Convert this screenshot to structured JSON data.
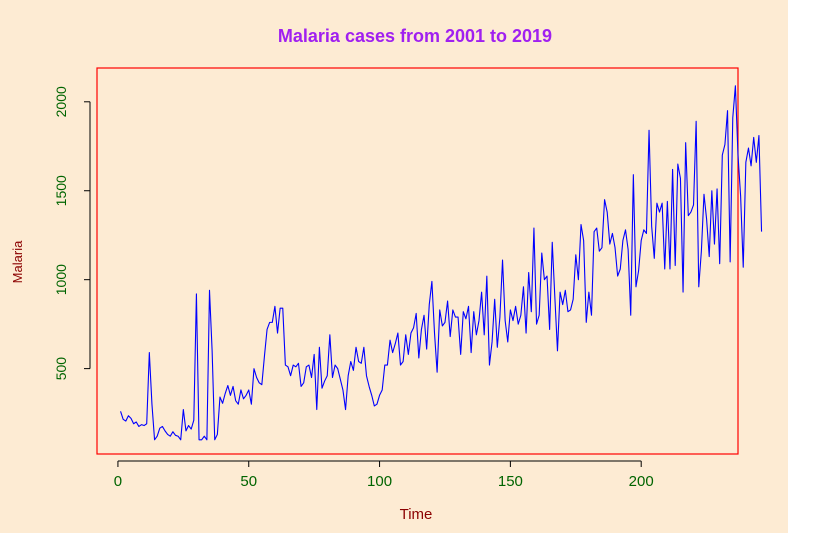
{
  "chart_data": {
    "type": "line",
    "title": "Malaria cases from 2001 to 2019",
    "xlabel": "Time",
    "ylabel": "Malaria",
    "xlim": [
      -8,
      237
    ],
    "ylim": [
      20,
      2190
    ],
    "x_ticks": [
      0,
      50,
      100,
      150,
      200
    ],
    "y_ticks": [
      500,
      1000,
      1500,
      2000
    ],
    "grid": false,
    "colors": {
      "title": "#a020f0",
      "axis_label": "#8b0000",
      "tick_label": "#006400",
      "frame": "#ff0000",
      "line": "#0000ff",
      "background": "#fdebd3"
    },
    "series": [
      {
        "x_start": 1,
        "x_step": 1,
        "values": [
          260,
          215,
          205,
          235,
          220,
          190,
          200,
          175,
          185,
          180,
          190,
          590,
          300,
          100,
          120,
          165,
          175,
          150,
          130,
          120,
          145,
          125,
          120,
          100,
          270,
          150,
          180,
          160,
          210,
          920,
          100,
          100,
          120,
          100,
          940,
          600,
          100,
          130,
          340,
          305,
          360,
          405,
          350,
          400,
          320,
          300,
          380,
          330,
          350,
          380,
          300,
          500,
          450,
          420,
          410,
          570,
          720,
          760,
          760,
          850,
          700,
          840,
          840,
          520,
          510,
          460,
          520,
          510,
          530,
          400,
          420,
          510,
          520,
          450,
          580,
          270,
          620,
          390,
          430,
          460,
          690,
          450,
          520,
          500,
          440,
          380,
          270,
          460,
          540,
          490,
          620,
          540,
          530,
          620,
          460,
          400,
          350,
          290,
          300,
          350,
          380,
          520,
          520,
          660,
          590,
          640,
          700,
          520,
          540,
          690,
          580,
          700,
          730,
          810,
          560,
          720,
          800,
          610,
          860,
          990,
          700,
          480,
          830,
          740,
          760,
          880,
          680,
          830,
          790,
          790,
          580,
          820,
          780,
          850,
          590,
          820,
          690,
          770,
          930,
          690,
          1020,
          520,
          650,
          890,
          620,
          790,
          1110,
          770,
          650,
          830,
          770,
          850,
          750,
          800,
          960,
          700,
          1040,
          820,
          1290,
          750,
          800,
          1150,
          1000,
          1020,
          720,
          1210,
          900,
          600,
          930,
          860,
          940,
          820,
          830,
          890,
          1140,
          1000,
          1310,
          1220,
          760,
          930,
          800,
          1270,
          1290,
          1160,
          1180,
          1450,
          1380,
          1200,
          1260,
          1180,
          1020,
          1060,
          1220,
          1280,
          1170,
          800,
          1590,
          960,
          1050,
          1220,
          1280,
          1260,
          1840,
          1300,
          1120,
          1430,
          1380,
          1430,
          1060,
          1440,
          1060,
          1620,
          1080,
          1650,
          1570,
          930,
          1770,
          1360,
          1380,
          1420,
          1890,
          960,
          1160,
          1480,
          1340,
          1130,
          1500,
          1200,
          1510,
          1090,
          1700,
          1760,
          1950,
          1100,
          1910,
          2090,
          1700,
          1470,
          1070,
          1660,
          1740,
          1640,
          1800,
          1660,
          1810,
          1270
        ]
      }
    ]
  }
}
